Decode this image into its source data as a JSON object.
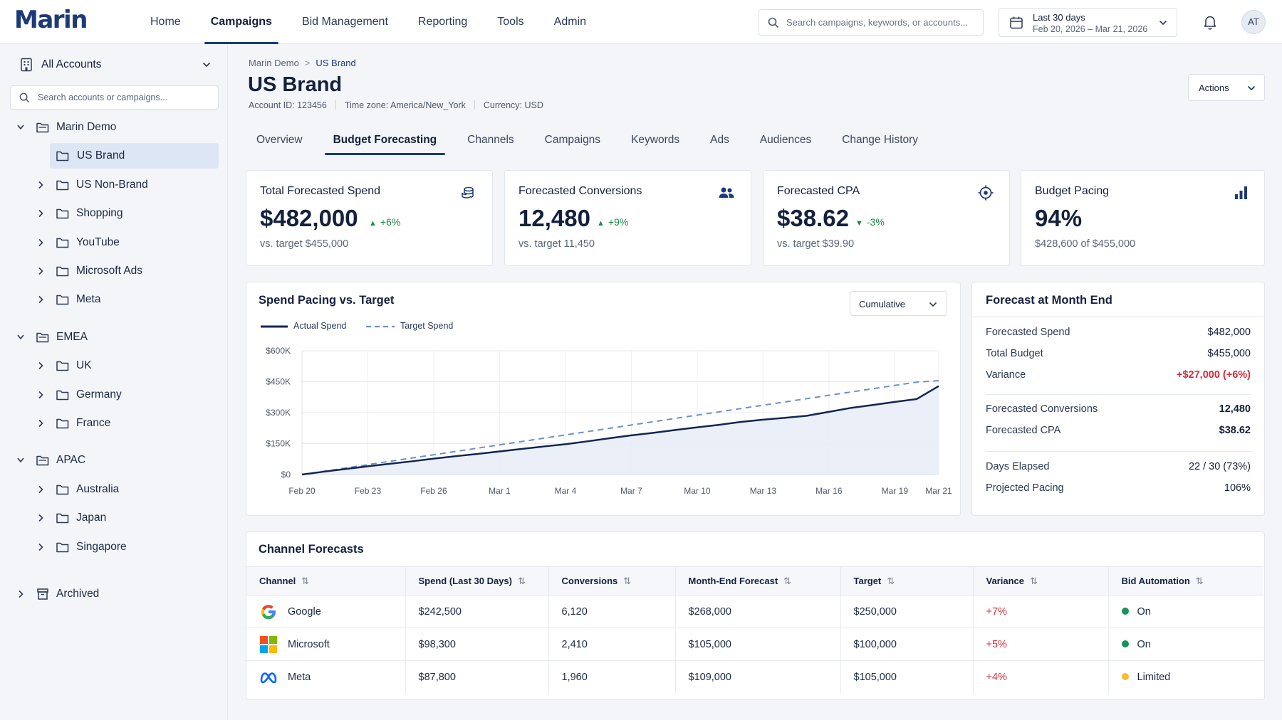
{
  "app": {
    "logo_text": "Marin"
  },
  "nav": {
    "links": [
      "Home",
      "Campaigns",
      "Bid Management",
      "Reporting",
      "Tools",
      "Admin"
    ],
    "active": "Campaigns"
  },
  "search": {
    "placeholder": "Search campaigns, keywords, or accounts..."
  },
  "date_range": {
    "label": "Last 30 days",
    "range": "Feb 20, 2026 – Mar 21, 2026"
  },
  "user": {
    "initials": "AT"
  },
  "sidebar": {
    "account_selector": "All Accounts",
    "search_placeholder": "Search accounts or campaigns...",
    "tree": [
      {
        "label": "Marin Demo",
        "level": 0,
        "expanded": true
      },
      {
        "label": "US Brand",
        "level": 1,
        "selected": true
      },
      {
        "label": "US Non-Brand",
        "level": 1
      },
      {
        "label": "Shopping",
        "level": 1
      },
      {
        "label": "YouTube",
        "level": 1
      },
      {
        "label": "Microsoft Ads",
        "level": 1
      },
      {
        "label": "Meta",
        "level": 1
      },
      {
        "label": "EMEA",
        "level": 0,
        "expanded": true
      },
      {
        "label": "UK",
        "level": 1
      },
      {
        "label": "Germany",
        "level": 1
      },
      {
        "label": "France",
        "level": 1
      },
      {
        "label": "APAC",
        "level": 0,
        "expanded": true
      },
      {
        "label": "Australia",
        "level": 1
      },
      {
        "label": "Japan",
        "level": 1
      },
      {
        "label": "Singapore",
        "level": 1
      },
      {
        "label": "Archived",
        "level": 0,
        "archived": true
      }
    ]
  },
  "breadcrumb": {
    "parent": "Marin Demo",
    "current": "US Brand"
  },
  "page": {
    "title": "US Brand",
    "account_id_label": "Account ID:",
    "account_id": "123456",
    "timezone_label": "Time zone:",
    "timezone": "America/New_York",
    "currency_label": "Currency:",
    "currency": "USD",
    "actions_label": "Actions"
  },
  "tabs": {
    "items": [
      "Overview",
      "Budget Forecasting",
      "Channels",
      "Campaigns",
      "Keywords",
      "Ads",
      "Audiences",
      "Change History"
    ],
    "active": "Budget Forecasting"
  },
  "kpis": [
    {
      "label": "Total Forecasted Spend",
      "value": "$482,000",
      "delta": "+6%",
      "direction": "up",
      "sub": "vs. target $455,000",
      "icon": "coins-icon"
    },
    {
      "label": "Forecasted Conversions",
      "value": "12,480",
      "delta": "+9%",
      "direction": "up",
      "sub": "vs. target 11,450",
      "icon": "users-icon"
    },
    {
      "label": "Forecasted CPA",
      "value": "$38.62",
      "delta": "-3%",
      "direction": "down",
      "sub": "vs. target $39.90",
      "icon": "target-icon"
    },
    {
      "label": "Budget Pacing",
      "value": "94%",
      "delta": "",
      "direction": "",
      "sub": "$428,600 of $455,000",
      "icon": "bar-chart-icon"
    }
  ],
  "spend_chart": {
    "title": "Spend Pacing vs. Target",
    "mode": "Cumulative",
    "legend": {
      "actual": "Actual Spend",
      "target": "Target Spend"
    }
  },
  "chart_data": {
    "type": "line",
    "title": "Spend Pacing vs. Target",
    "x": [
      "Feb 20",
      "Feb 21",
      "Feb 22",
      "Feb 23",
      "Feb 24",
      "Feb 25",
      "Feb 26",
      "Feb 27",
      "Feb 28",
      "Mar 1",
      "Mar 2",
      "Mar 3",
      "Mar 4",
      "Mar 5",
      "Mar 6",
      "Mar 7",
      "Mar 8",
      "Mar 9",
      "Mar 10",
      "Mar 11",
      "Mar 12",
      "Mar 13",
      "Mar 14",
      "Mar 15",
      "Mar 16",
      "Mar 17",
      "Mar 18",
      "Mar 19",
      "Mar 20",
      "Mar 21"
    ],
    "xticks": [
      "Feb 20",
      "Feb 23",
      "Feb 26",
      "Mar 1",
      "Mar 4",
      "Mar 7",
      "Mar 10",
      "Mar 13",
      "Mar 16",
      "Mar 19",
      "Mar 21"
    ],
    "yticks": [
      "$0",
      "$150K",
      "$300K",
      "$450K",
      "$600K"
    ],
    "ylim": [
      0,
      600000
    ],
    "grid": true,
    "legend_position": "top-left",
    "series": [
      {
        "name": "Actual Spend",
        "style": "solid",
        "color": "#14254f",
        "fill": "#e8edf7",
        "values": [
          0,
          14000,
          27000,
          40000,
          52000,
          64000,
          77000,
          89000,
          100000,
          112000,
          124000,
          136000,
          147000,
          161000,
          176000,
          190000,
          202000,
          216000,
          229000,
          241000,
          255000,
          266000,
          275000,
          285000,
          304000,
          323000,
          337000,
          352000,
          366000,
          428600
        ]
      },
      {
        "name": "Target Spend",
        "style": "dashed",
        "color": "#6f8fcb",
        "values": [
          0,
          16000,
          32000,
          48000,
          64000,
          80000,
          96000,
          112000,
          128000,
          144000,
          160000,
          176000,
          192000,
          208000,
          224000,
          240000,
          256000,
          272000,
          288000,
          304000,
          320000,
          336000,
          352000,
          368000,
          384000,
          400000,
          416000,
          432000,
          448000,
          455000
        ]
      }
    ]
  },
  "forecast_summary": {
    "title": "Forecast at Month End",
    "rows": [
      {
        "label": "Forecasted Spend",
        "value": "$482,000"
      },
      {
        "label": "Total Budget",
        "value": "$455,000"
      },
      {
        "label": "Variance",
        "value": "+$27,000 (+6%)",
        "emphasis": "negative"
      },
      {
        "label": "Forecasted Conversions",
        "value": "12,480",
        "bold": true
      },
      {
        "label": "Forecasted CPA",
        "value": "$38.62",
        "bold": true
      },
      {
        "label": "Days Elapsed",
        "value": "22 / 30 (73%)"
      },
      {
        "label": "Projected Pacing",
        "value": "106%"
      }
    ]
  },
  "channel_table": {
    "title": "Channel Forecasts",
    "columns": [
      "Channel",
      "Spend (Last 30 Days)",
      "Conversions",
      "Month-End Forecast",
      "Target",
      "Variance",
      "Bid Automation"
    ],
    "rows": [
      {
        "channel": "Google",
        "logo": "google-logo-icon",
        "spend": "$242,500",
        "conversions": "6,120",
        "forecast": "$268,000",
        "target": "$250,000",
        "variance": "+7%",
        "automation": "On",
        "status_color": "#17915a"
      },
      {
        "channel": "Microsoft",
        "logo": "microsoft-logo-icon",
        "spend": "$98,300",
        "conversions": "2,410",
        "forecast": "$105,000",
        "target": "$100,000",
        "variance": "+5%",
        "automation": "On",
        "status_color": "#17915a"
      },
      {
        "channel": "Meta",
        "logo": "meta-logo-icon",
        "spend": "$87,800",
        "conversions": "1,960",
        "forecast": "$109,000",
        "target": "$105,000",
        "variance": "+4%",
        "automation": "Limited",
        "status_color": "#f2c12e"
      }
    ]
  },
  "colors": {
    "brand": "#1d3a78",
    "positive": "#1b8a45",
    "negative": "#d22d3b",
    "accent_line": "#14254f"
  }
}
